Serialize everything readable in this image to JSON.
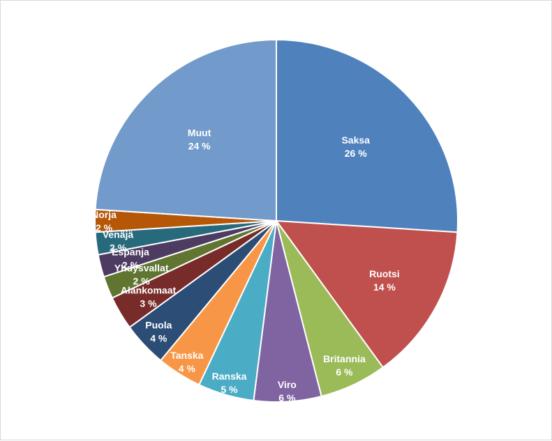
{
  "chart_data": {
    "type": "pie",
    "title": "",
    "start_angle_deg": 0,
    "direction": "clockwise",
    "legend": "none",
    "slices": [
      {
        "name": "Saksa",
        "label": "26 %",
        "value": 26,
        "color": "#4f81bd"
      },
      {
        "name": "Ruotsi",
        "label": "14 %",
        "value": 14,
        "color": "#c0504d"
      },
      {
        "name": "Britannia",
        "label": "6 %",
        "value": 6,
        "color": "#9bbb59"
      },
      {
        "name": "Viro",
        "label": "6 %",
        "value": 6,
        "color": "#8064a2"
      },
      {
        "name": "Ranska",
        "label": "5 %",
        "value": 5,
        "color": "#4bacc6"
      },
      {
        "name": "Tanska",
        "label": "4 %",
        "value": 4,
        "color": "#f79646"
      },
      {
        "name": "Puola",
        "label": "4 %",
        "value": 4,
        "color": "#2c4d75"
      },
      {
        "name": "Alankomaat",
        "label": "3 %",
        "value": 3,
        "color": "#772c2a"
      },
      {
        "name": "Yhdysvallat",
        "label": "2 %",
        "value": 2,
        "color": "#5f7530"
      },
      {
        "name": "Espanja",
        "label": "2 %",
        "value": 2,
        "color": "#4d3b62"
      },
      {
        "name": "Venäjä",
        "label": "2 %",
        "value": 2,
        "color": "#276a7c"
      },
      {
        "name": "Norja",
        "label": "2 %",
        "value": 2,
        "color": "#b65708"
      },
      {
        "name": "Muut",
        "label": "24 %",
        "value": 24,
        "color": "#729aca"
      }
    ]
  }
}
